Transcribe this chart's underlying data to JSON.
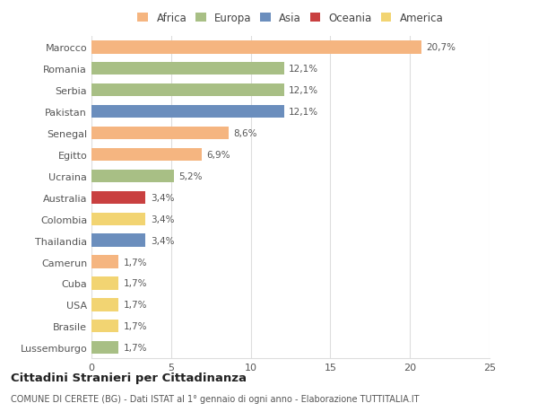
{
  "countries": [
    "Marocco",
    "Romania",
    "Serbia",
    "Pakistan",
    "Senegal",
    "Egitto",
    "Ucraina",
    "Australia",
    "Colombia",
    "Thailandia",
    "Camerun",
    "Cuba",
    "USA",
    "Brasile",
    "Lussemburgo"
  ],
  "values": [
    20.7,
    12.1,
    12.1,
    12.1,
    8.6,
    6.9,
    5.2,
    3.4,
    3.4,
    3.4,
    1.7,
    1.7,
    1.7,
    1.7,
    1.7
  ],
  "labels": [
    "20,7%",
    "12,1%",
    "12,1%",
    "12,1%",
    "8,6%",
    "6,9%",
    "5,2%",
    "3,4%",
    "3,4%",
    "3,4%",
    "1,7%",
    "1,7%",
    "1,7%",
    "1,7%",
    "1,7%"
  ],
  "colors": [
    "#f5b580",
    "#a8bf85",
    "#a8bf85",
    "#6b8ebd",
    "#f5b580",
    "#f5b580",
    "#a8bf85",
    "#c94040",
    "#f2d472",
    "#6b8ebd",
    "#f5b580",
    "#f2d472",
    "#f2d472",
    "#f2d472",
    "#a8bf85"
  ],
  "continents": [
    "Africa",
    "Europa",
    "Asia",
    "Oceania",
    "America"
  ],
  "legend_colors": [
    "#f5b580",
    "#a8bf85",
    "#6b8ebd",
    "#c94040",
    "#f2d472"
  ],
  "title": "Cittadini Stranieri per Cittadinanza",
  "subtitle": "COMUNE DI CERETE (BG) - Dati ISTAT al 1° gennaio di ogni anno - Elaborazione TUTTITALIA.IT",
  "xlim": [
    0,
    25
  ],
  "xticks": [
    0,
    5,
    10,
    15,
    20,
    25
  ],
  "background_color": "#ffffff",
  "grid_color": "#dddddd"
}
